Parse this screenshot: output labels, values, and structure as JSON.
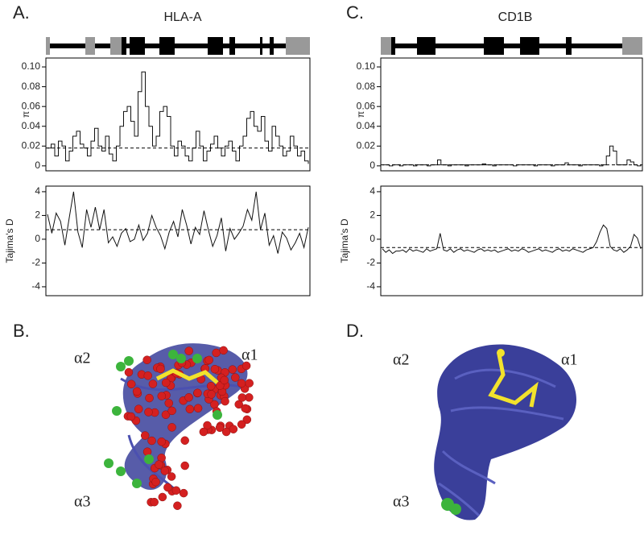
{
  "panels": {
    "a_label": "A.",
    "b_label": "B.",
    "c_label": "C.",
    "d_label": "D.",
    "a_title": "HLA-A",
    "c_title": "CD1B",
    "b_alpha1": "α1",
    "b_alpha2": "α2",
    "b_alpha3": "α3",
    "d_alpha1": "α1",
    "d_alpha2": "α2",
    "d_alpha3": "α3"
  },
  "chart_data": [
    {
      "type": "line",
      "step": true,
      "ylabel": "π",
      "color": "#111111",
      "reference_line": 0.018,
      "ylim": [
        -0.005,
        0.109
      ],
      "yticks": [
        0,
        0.02,
        0.04,
        0.06,
        0.08,
        {
          "value": 0.1,
          "label": "0.10"
        }
      ],
      "values": [
        0.018,
        0.022,
        0.01,
        0.025,
        0.02,
        0.005,
        0.015,
        0.03,
        0.035,
        0.022,
        0.018,
        0.01,
        0.025,
        0.038,
        0.02,
        0.015,
        0.03,
        0.012,
        0.005,
        0.02,
        0.04,
        0.055,
        0.06,
        0.045,
        0.03,
        0.075,
        0.095,
        0.06,
        0.04,
        0.02,
        0.03,
        0.055,
        0.06,
        0.05,
        0.02,
        0.01,
        0.025,
        0.02,
        0.01,
        0.005,
        0.018,
        0.035,
        0.02,
        0.005,
        0.015,
        0.022,
        0.03,
        0.018,
        0.01,
        0.02,
        0.025,
        0.015,
        0.005,
        0.02,
        0.03,
        0.048,
        0.055,
        0.04,
        0.035,
        0.05,
        0.025,
        0.015,
        0.04,
        0.03,
        0.02,
        0.01,
        0.015,
        0.03,
        0.02,
        0.01,
        0.015,
        0.005,
        0.002
      ]
    },
    {
      "type": "line",
      "step": false,
      "ylabel": "Tajima's D",
      "color": "#111111",
      "reference_line": 0.8,
      "ylim": [
        -4.75,
        4.47
      ],
      "yticks": [
        -4,
        -2,
        0,
        2,
        4
      ],
      "values": [
        2.1,
        0.5,
        2.2,
        1.5,
        -0.5,
        1.8,
        4.0,
        0.6,
        -0.7,
        2.5,
        1.0,
        2.7,
        0.8,
        2.5,
        -0.3,
        0.2,
        -0.6,
        0.5,
        0.9,
        -0.2,
        0.0,
        1.2,
        -0.1,
        0.5,
        2.0,
        1.0,
        0.3,
        -0.8,
        0.6,
        1.5,
        0.2,
        2.5,
        1.2,
        -0.4,
        1.0,
        0.4,
        2.4,
        0.8,
        -0.6,
        0.3,
        1.8,
        -1.0,
        0.9,
        0.0,
        0.5,
        1.1,
        2.5,
        1.6,
        4.0,
        0.8,
        2.2,
        -0.5,
        0.3,
        -1.2,
        0.6,
        0.1,
        -0.9,
        -0.3,
        0.5,
        -0.7,
        1.0
      ]
    },
    {
      "type": "line",
      "step": true,
      "ylabel": "π",
      "color": "#111111",
      "reference_line": 0.001,
      "ylim": [
        -0.005,
        0.109
      ],
      "yticks": [
        0,
        0.02,
        0.04,
        0.06,
        0.08,
        {
          "value": 0.1,
          "label": "0.10"
        }
      ],
      "values": [
        0.001,
        0.001,
        0.0,
        0.001,
        0.001,
        0.0,
        0.001,
        0.001,
        0.001,
        0.0,
        0.001,
        0.001,
        0.001,
        0.0,
        0.001,
        0.001,
        0.006,
        0.001,
        0.001,
        0.0,
        0.001,
        0.001,
        0.001,
        0.001,
        0.0,
        0.001,
        0.001,
        0.001,
        0.001,
        0.002,
        0.001,
        0.001,
        0.0,
        0.001,
        0.001,
        0.001,
        0.001,
        0.001,
        0.0,
        0.001,
        0.001,
        0.001,
        0.001,
        0.001,
        0.0,
        0.001,
        0.001,
        0.001,
        0.001,
        0.0,
        0.001,
        0.001,
        0.001,
        0.003,
        0.001,
        0.001,
        0.001,
        0.0,
        0.001,
        0.001,
        0.001,
        0.001,
        0.001,
        0.0,
        0.001,
        0.01,
        0.02,
        0.015,
        0.001,
        0.001,
        0.001,
        0.006,
        0.004,
        0.001,
        0.0,
        0.001
      ]
    },
    {
      "type": "line",
      "step": false,
      "ylabel": "Tajima's D",
      "color": "#111111",
      "reference_line": -0.7,
      "ylim": [
        -4.75,
        4.47
      ],
      "yticks": [
        -4,
        -2,
        0,
        2,
        4
      ],
      "values": [
        -0.8,
        -1.1,
        -0.9,
        -1.2,
        -1.0,
        -1.0,
        -0.9,
        -1.1,
        -0.8,
        -1.0,
        -0.9,
        -1.0,
        -1.1,
        -0.8,
        -1.0,
        -0.9,
        -0.8,
        0.5,
        -0.9,
        -1.0,
        -0.8,
        -1.1,
        -0.9,
        -0.8,
        -1.0,
        -0.9,
        -1.0,
        -1.1,
        -0.9,
        -0.8,
        -1.0,
        -0.9,
        -1.0,
        -0.9,
        -1.1,
        -1.0,
        -0.9,
        -0.8,
        -1.0,
        -0.9,
        -1.0,
        -0.8,
        -0.9,
        -1.1,
        -1.0,
        -0.9,
        -0.8,
        -1.0,
        -0.9,
        -1.0,
        -1.1,
        -0.9,
        -0.8,
        -1.0,
        -0.9,
        -1.0,
        -0.8,
        -0.9,
        -1.0,
        -1.1,
        -0.9,
        -0.8,
        -0.7,
        -0.2,
        0.6,
        1.2,
        0.9,
        -0.6,
        -0.9,
        -1.0,
        -0.8,
        -1.1,
        -0.9,
        -0.6,
        0.4,
        0.1,
        -0.8
      ]
    }
  ]
}
